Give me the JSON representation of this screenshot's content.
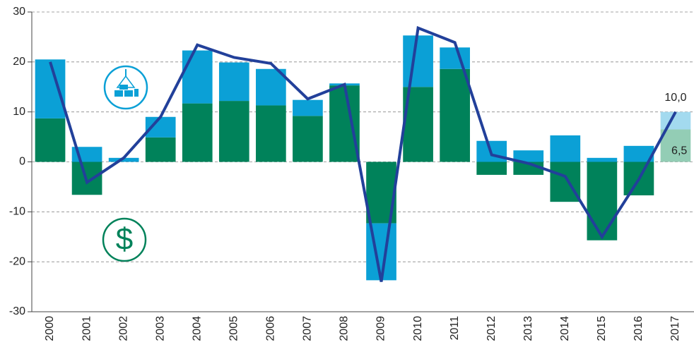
{
  "chart_data": {
    "type": "stacked_bar_line",
    "categories": [
      "2000",
      "2001",
      "2002",
      "2003",
      "2004",
      "2005",
      "2006",
      "2007",
      "2008",
      "2009",
      "2010",
      "2011",
      "2012",
      "2013",
      "2014",
      "2015",
      "2016",
      "2017"
    ],
    "series": [
      {
        "color": "#00825a",
        "last_color": "#93cdb5",
        "values": [
          8.7,
          -6.6,
          0,
          4.9,
          11.7,
          12.2,
          11.3,
          9.2,
          15.3,
          -12.3,
          15.0,
          18.6,
          -2.6,
          -2.6,
          -8.0,
          -15.7,
          -6.7,
          6.5
        ],
        "value_labels": [
          null,
          null,
          null,
          null,
          null,
          null,
          null,
          null,
          null,
          null,
          null,
          null,
          null,
          null,
          null,
          null,
          null,
          "6,5"
        ]
      },
      {
        "color": "#0ba0d6",
        "last_color": "#a3daef",
        "values": [
          11.8,
          3.0,
          0.8,
          4.1,
          10.6,
          7.7,
          7.3,
          3.2,
          0.4,
          -11.4,
          10.3,
          4.3,
          4.2,
          2.3,
          5.3,
          0.8,
          3.2,
          3.5
        ]
      },
      {
        "type": "line",
        "color": "#22409a",
        "values": [
          20.0,
          -4.1,
          0.8,
          9.0,
          23.4,
          20.9,
          19.7,
          12.6,
          15.5,
          -24.0,
          26.8,
          23.9,
          1.4,
          -0.3,
          -2.9,
          -15.0,
          -3.5,
          10.0
        ],
        "value_labels": [
          null,
          null,
          null,
          null,
          null,
          null,
          null,
          null,
          null,
          null,
          null,
          null,
          null,
          null,
          null,
          null,
          null,
          "10,0"
        ]
      }
    ],
    "icon_text": "$",
    "ylim": [
      -30,
      30
    ],
    "yticks": [
      -30,
      -20,
      -10,
      0,
      10,
      20,
      30
    ],
    "grid": true
  }
}
